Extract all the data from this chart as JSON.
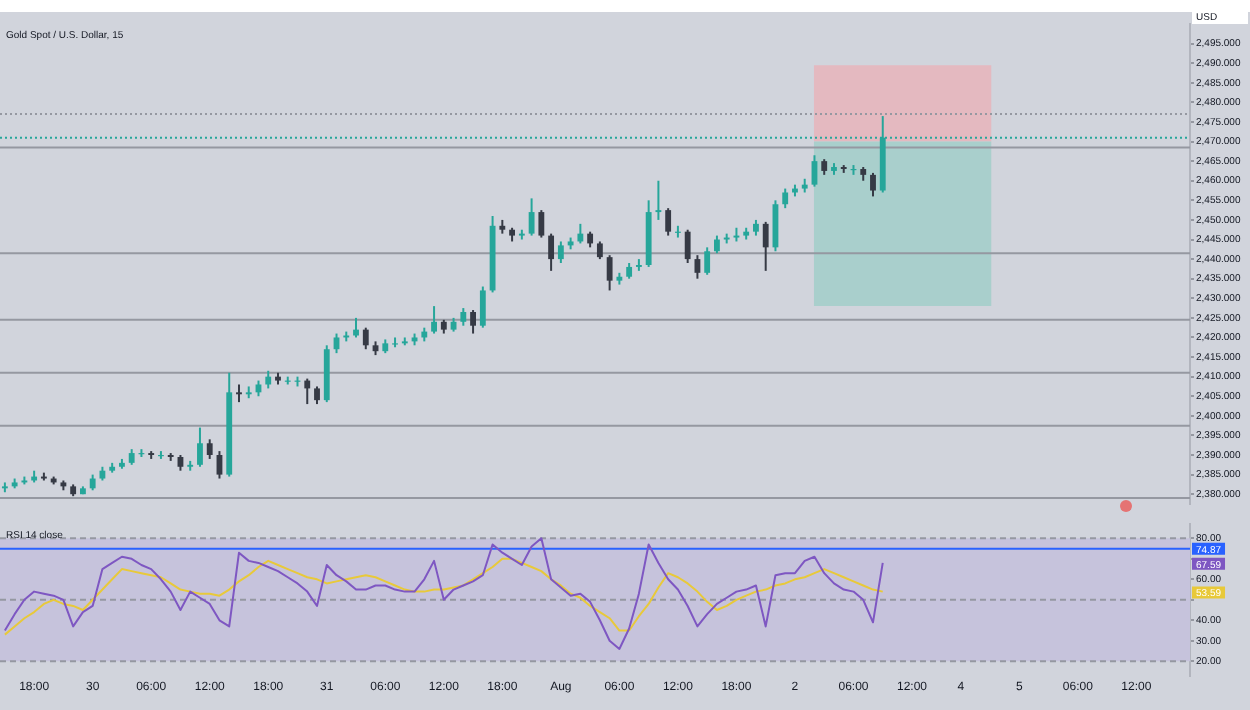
{
  "chart_data": [
    {
      "type": "candlestick",
      "title": "Gold Spot / U.S. Dollar, 15",
      "annotations": [
        "USD"
      ],
      "categories": [
        null,
        null,
        null,
        null,
        null,
        null,
        null,
        null,
        null,
        null,
        null,
        null,
        null,
        null,
        null,
        null,
        null,
        null,
        null,
        null,
        null,
        null,
        null,
        null,
        null,
        null,
        null,
        null,
        null,
        null,
        null,
        null,
        null,
        null,
        null,
        null,
        null,
        null,
        null,
        null,
        null,
        null,
        null,
        null,
        null,
        null,
        null,
        null,
        null,
        null,
        null,
        null,
        null,
        null,
        null,
        null,
        null,
        null,
        null,
        null,
        null,
        null,
        null,
        null,
        null,
        null,
        null,
        null,
        null,
        null,
        null,
        null,
        null,
        null,
        null,
        null,
        null,
        null,
        null,
        null,
        null,
        null,
        null,
        null,
        null,
        null,
        null,
        null,
        null,
        null,
        null,
        null,
        null,
        null,
        null,
        null,
        null,
        null,
        null,
        null,
        null,
        null,
        null,
        null,
        null,
        null,
        null,
        null,
        null,
        null,
        null,
        null,
        null,
        null,
        null,
        null,
        null,
        null,
        null,
        null,
        null,
        null
      ],
      "ohlc": [
        [
          2381.5,
          2383,
          2380.5,
          2382
        ],
        [
          2382,
          2384,
          2381.5,
          2383
        ],
        [
          2383,
          2384.5,
          2382.5,
          2383.5
        ],
        [
          2383.5,
          2386,
          2383,
          2384.5
        ],
        [
          2384.5,
          2385.5,
          2383.5,
          2384
        ],
        [
          2384,
          2384.5,
          2382.5,
          2383
        ],
        [
          2383,
          2383.5,
          2381,
          2382
        ],
        [
          2382,
          2382.5,
          2379.5,
          2380
        ],
        [
          2380,
          2382,
          2380,
          2381.5
        ],
        [
          2381.5,
          2385,
          2381,
          2384
        ],
        [
          2384,
          2387,
          2383.5,
          2386
        ],
        [
          2386,
          2388,
          2385.5,
          2387
        ],
        [
          2387,
          2389,
          2386.5,
          2388
        ],
        [
          2388,
          2391.5,
          2387.5,
          2390.5
        ],
        [
          2390.5,
          2391.5,
          2389.5,
          2390.5
        ],
        [
          2390.5,
          2391,
          2389,
          2390
        ],
        [
          2390,
          2391,
          2389,
          2390
        ],
        [
          2390,
          2390.5,
          2388.5,
          2389.5
        ],
        [
          2389.5,
          2390,
          2386,
          2387
        ],
        [
          2387,
          2388.5,
          2386,
          2387.5
        ],
        [
          2387.5,
          2397,
          2387,
          2393
        ],
        [
          2393,
          2394,
          2389,
          2390
        ],
        [
          2390,
          2391,
          2384,
          2385
        ],
        [
          2385,
          2411,
          2384.5,
          2406
        ],
        [
          2406,
          2408,
          2403.5,
          2405.5
        ],
        [
          2405.5,
          2407.5,
          2404.5,
          2406
        ],
        [
          2406,
          2409,
          2405,
          2408
        ],
        [
          2408,
          2411.5,
          2407,
          2410
        ],
        [
          2410,
          2411,
          2408,
          2409
        ],
        [
          2409,
          2410,
          2408,
          2409
        ],
        [
          2409,
          2410,
          2407.5,
          2409
        ],
        [
          2409,
          2409.5,
          2403,
          2407
        ],
        [
          2407,
          2407.5,
          2403,
          2404
        ],
        [
          2404,
          2418,
          2403.5,
          2417
        ],
        [
          2417,
          2421,
          2416,
          2420
        ],
        [
          2420,
          2421.5,
          2419,
          2420.5
        ],
        [
          2420.5,
          2425,
          2420,
          2422
        ],
        [
          2422,
          2422.5,
          2417,
          2418
        ],
        [
          2418,
          2419,
          2415.5,
          2416.5
        ],
        [
          2416.5,
          2419.5,
          2416,
          2418.5
        ],
        [
          2418.5,
          2420,
          2417.5,
          2418.5
        ],
        [
          2418.5,
          2420,
          2418,
          2419
        ],
        [
          2419,
          2421,
          2418,
          2420
        ],
        [
          2420,
          2422.5,
          2419,
          2421.5
        ],
        [
          2421.5,
          2428,
          2421,
          2424
        ],
        [
          2424,
          2424.5,
          2421,
          2422
        ],
        [
          2422,
          2425,
          2421.5,
          2424
        ],
        [
          2424,
          2427.5,
          2423,
          2426.5
        ],
        [
          2426.5,
          2427,
          2421,
          2423
        ],
        [
          2423,
          2433,
          2422.5,
          2432
        ],
        [
          2432,
          2451,
          2431.5,
          2448.5
        ],
        [
          2448.5,
          2450,
          2446.5,
          2447.5
        ],
        [
          2447.5,
          2448,
          2444.5,
          2446
        ],
        [
          2446,
          2447.5,
          2445,
          2446.5
        ],
        [
          2446.5,
          2455.5,
          2446,
          2452
        ],
        [
          2452,
          2452.5,
          2445.5,
          2446
        ],
        [
          2446,
          2446.5,
          2437,
          2440
        ],
        [
          2440,
          2444.5,
          2439,
          2443.5
        ],
        [
          2443.5,
          2445.5,
          2442.5,
          2444.5
        ],
        [
          2444.5,
          2449,
          2444,
          2446.5
        ],
        [
          2446.5,
          2447,
          2443,
          2444
        ],
        [
          2444,
          2444.5,
          2440,
          2440.5
        ],
        [
          2440.5,
          2441,
          2432,
          2434.5
        ],
        [
          2434.5,
          2436.5,
          2433.5,
          2435.5
        ],
        [
          2435.5,
          2439,
          2435,
          2438
        ],
        [
          2438,
          2440,
          2437,
          2438.5
        ],
        [
          2438.5,
          2455,
          2438,
          2452
        ],
        [
          2452,
          2460,
          2450,
          2452.5
        ],
        [
          2452.5,
          2453,
          2446,
          2447
        ],
        [
          2447,
          2448.5,
          2445.5,
          2447
        ],
        [
          2447,
          2447.5,
          2439,
          2440
        ],
        [
          2440,
          2441,
          2435,
          2436.5
        ],
        [
          2436.5,
          2443,
          2436,
          2442
        ],
        [
          2442,
          2446,
          2441.5,
          2445
        ],
        [
          2445,
          2446.5,
          2444,
          2445.5
        ],
        [
          2445.5,
          2448,
          2444.5,
          2446
        ],
        [
          2446,
          2448,
          2445,
          2447
        ],
        [
          2447,
          2450,
          2446,
          2449
        ],
        [
          2449,
          2449.5,
          2437,
          2443
        ],
        [
          2443,
          2455,
          2442,
          2454
        ],
        [
          2454,
          2458,
          2453,
          2457
        ],
        [
          2457,
          2459,
          2456,
          2458
        ],
        [
          2458,
          2460.5,
          2457,
          2459
        ],
        [
          2459,
          2466.5,
          2458.5,
          2465
        ],
        [
          2465,
          2465.5,
          2461.5,
          2462.5
        ],
        [
          2462.5,
          2464.5,
          2461.5,
          2463.5
        ],
        [
          2463.5,
          2464,
          2462,
          2463
        ],
        [
          2463,
          2464,
          2461.5,
          2463
        ],
        [
          2463,
          2463.5,
          2460,
          2461.5
        ],
        [
          2461.5,
          2462,
          2456,
          2457.5
        ],
        [
          2457.5,
          2476.5,
          2457,
          2471
        ],
        null,
        null,
        null,
        null,
        null,
        null,
        null,
        null,
        null,
        null,
        null,
        null,
        null,
        null,
        null,
        null,
        null,
        null,
        null,
        null,
        null,
        null,
        null,
        null,
        null,
        null,
        null,
        null,
        null,
        null,
        null
      ],
      "colors": [
        "#26a69a",
        "#26a69a",
        "#26a69a",
        "#26a69a",
        "#363a45",
        "#363a45",
        "#363a45",
        "#363a45",
        "#26a69a",
        "#26a69a",
        "#26a69a",
        "#26a69a",
        "#26a69a",
        "#26a69a",
        "#26a69a",
        "#363a45",
        "#26a69a",
        "#363a45",
        "#363a45",
        "#26a69a",
        "#26a69a",
        "#363a45",
        "#363a45",
        "#26a69a",
        "#363a45",
        "#26a69a",
        "#26a69a",
        "#26a69a",
        "#363a45",
        "#26a69a",
        "#26a69a",
        "#363a45",
        "#363a45",
        "#26a69a",
        "#26a69a",
        "#26a69a",
        "#26a69a",
        "#363a45",
        "#363a45",
        "#26a69a",
        "#26a69a",
        "#26a69a",
        "#26a69a",
        "#26a69a",
        "#26a69a",
        "#363a45",
        "#26a69a",
        "#26a69a",
        "#363a45",
        "#26a69a",
        "#26a69a",
        "#363a45",
        "#363a45",
        "#26a69a",
        "#26a69a",
        "#363a45",
        "#363a45",
        "#26a69a",
        "#26a69a",
        "#26a69a",
        "#363a45",
        "#363a45",
        "#363a45",
        "#26a69a",
        "#26a69a",
        "#26a69a",
        "#26a69a",
        "#26a69a",
        "#363a45",
        "#26a69a",
        "#363a45",
        "#363a45",
        "#26a69a",
        "#26a69a",
        "#26a69a",
        "#26a69a",
        "#26a69a",
        "#26a69a",
        "#363a45",
        "#26a69a",
        "#26a69a",
        "#26a69a",
        "#26a69a",
        "#26a69a",
        "#363a45",
        "#26a69a",
        "#363a45",
        "#26a69a",
        "#363a45",
        "#363a45",
        "#26a69a",
        null,
        null,
        null,
        null,
        null,
        null,
        null,
        null,
        null,
        null,
        null,
        null,
        null,
        null,
        null,
        null,
        null,
        null,
        null,
        null,
        null,
        null,
        null,
        null,
        null,
        null,
        null,
        null,
        null,
        null,
        null
      ],
      "ylim": [
        2377.5,
        2500
      ],
      "yticks": [
        {
          "value": 2380,
          "label": "2,380.000"
        },
        {
          "value": 2385,
          "label": "2,385.000"
        },
        {
          "value": 2390,
          "label": "2,390.000"
        },
        {
          "value": 2395,
          "label": "2,395.000"
        },
        {
          "value": 2400,
          "label": "2,400.000"
        },
        {
          "value": 2405,
          "label": "2,405.000"
        },
        {
          "value": 2410,
          "label": "2,410.000"
        },
        {
          "value": 2415,
          "label": "2,415.000"
        },
        {
          "value": 2420,
          "label": "2,420.000"
        },
        {
          "value": 2425,
          "label": "2,425.000"
        },
        {
          "value": 2430,
          "label": "2,430.000"
        },
        {
          "value": 2435,
          "label": "2,435.000"
        },
        {
          "value": 2440,
          "label": "2,440.000"
        },
        {
          "value": 2445,
          "label": "2,445.000"
        },
        {
          "value": 2450,
          "label": "2,450.000"
        },
        {
          "value": 2455,
          "label": "2,455.000"
        },
        {
          "value": 2460,
          "label": "2,460.000"
        },
        {
          "value": 2465,
          "label": "2,465.000"
        },
        {
          "value": 2470,
          "label": "2,470.000"
        },
        {
          "value": 2475,
          "label": "2,475.000"
        },
        {
          "value": 2480,
          "label": "2,480.000"
        },
        {
          "value": 2485,
          "label": "2,485.000"
        },
        {
          "value": 2490,
          "label": "2,490.000"
        },
        {
          "value": 2495,
          "label": "2,495.000"
        }
      ],
      "tick_labels": "y",
      "bands": [
        {
          "axis": "y",
          "from": 2470,
          "to": 2489.5,
          "color": "#e4b9c0"
        },
        {
          "axis": "y",
          "from": 2428,
          "to": 2470,
          "color": "#a9cfcc"
        }
      ],
      "ref_lines": [
        {
          "axis": "y",
          "value": 2477,
          "color": "#9598a1",
          "line_style": "dotted"
        },
        {
          "axis": "y",
          "value": 2471,
          "color": "#26a69a",
          "line_style": "dotted"
        },
        {
          "axis": "y",
          "value": 2468.5,
          "color": "#9598a1"
        },
        {
          "axis": "y",
          "value": 2441.5,
          "color": "#9598a1"
        },
        {
          "axis": "y",
          "value": 2424.5,
          "color": "#9598a1"
        },
        {
          "axis": "y",
          "value": 2411,
          "color": "#9598a1"
        },
        {
          "axis": "y",
          "value": 2397.5,
          "color": "#9598a1"
        },
        {
          "axis": "y",
          "value": 2379,
          "color": "#9598a1"
        }
      ]
    },
    {
      "type": "line",
      "title": "RSI 14 close",
      "marker": "none",
      "categories": [
        null,
        null,
        null,
        "18:00",
        null,
        null,
        null,
        null,
        null,
        "30",
        null,
        null,
        null,
        null,
        null,
        "06:00",
        null,
        null,
        null,
        null,
        null,
        "12:00",
        null,
        null,
        null,
        null,
        null,
        "18:00",
        null,
        null,
        null,
        null,
        null,
        "31",
        null,
        null,
        null,
        null,
        null,
        "06:00",
        null,
        null,
        null,
        null,
        null,
        "12:00",
        null,
        null,
        null,
        null,
        null,
        "18:00",
        null,
        null,
        null,
        null,
        null,
        "Aug",
        null,
        null,
        null,
        null,
        null,
        "06:00",
        null,
        null,
        null,
        null,
        null,
        "12:00",
        null,
        null,
        null,
        null,
        null,
        "18:00",
        null,
        null,
        null,
        null,
        null,
        "2",
        null,
        null,
        null,
        null,
        null,
        "06:00",
        null,
        null,
        null,
        null,
        null,
        "12:00",
        null,
        null,
        null,
        null,
        "4",
        null,
        null,
        null,
        null,
        null,
        "5",
        null,
        null,
        null,
        null,
        null,
        "06:00",
        null,
        null,
        null,
        null,
        null,
        "12:00",
        null,
        null,
        null,
        null,
        null
      ],
      "series": [
        {
          "color": "#7e57c2",
          "values": [
            35,
            43,
            50,
            54,
            53,
            52,
            50,
            37,
            44,
            47,
            65,
            68,
            71,
            70,
            67,
            65,
            60,
            54,
            45,
            54,
            51,
            48,
            40,
            37,
            73,
            69,
            68,
            66,
            64,
            61,
            58,
            54,
            47,
            67,
            62,
            59,
            55,
            55,
            57,
            57,
            55,
            54,
            54,
            60,
            69,
            50,
            55,
            57,
            59,
            62,
            77,
            73,
            70,
            67,
            76,
            80,
            60,
            56,
            52,
            53,
            49,
            40,
            30,
            26,
            36,
            53,
            77,
            68,
            60,
            55,
            47,
            37,
            43,
            48,
            51,
            54,
            55,
            57,
            37,
            62,
            63,
            63,
            69,
            71,
            63,
            58,
            55,
            54,
            50,
            39,
            68,
            null,
            null,
            null,
            null,
            null,
            null,
            null,
            null,
            null,
            null,
            null,
            null,
            null,
            null,
            null,
            null,
            null,
            null,
            null,
            null,
            null,
            null,
            null,
            null,
            null,
            null,
            null,
            null,
            null,
            null,
            null
          ]
        },
        {
          "color": "#e8c93a",
          "values": [
            33,
            37,
            41,
            44,
            48,
            50,
            48,
            47,
            45,
            50,
            55,
            60,
            65,
            64,
            63,
            62,
            61,
            58,
            55,
            54,
            53,
            53,
            52,
            55,
            59,
            62,
            66,
            69,
            67,
            65,
            63,
            61,
            60,
            58,
            59,
            60,
            61,
            62,
            61,
            59,
            57,
            55,
            54,
            54,
            55,
            55,
            56,
            57,
            60,
            63,
            66,
            70,
            70,
            68,
            66,
            64,
            60,
            57,
            53,
            51,
            47,
            44,
            41,
            35,
            35,
            42,
            48,
            56,
            63,
            61,
            58,
            54,
            49,
            45,
            47,
            50,
            52,
            54,
            55,
            57,
            58,
            60,
            61,
            63,
            65,
            63,
            61,
            59,
            57,
            55,
            54,
            null,
            null,
            null,
            null,
            null,
            null,
            null,
            null,
            null,
            null,
            null,
            null,
            null,
            null,
            null,
            null,
            null,
            null,
            null,
            null,
            null,
            null,
            null,
            null,
            null,
            null,
            null,
            null,
            null,
            null,
            null
          ]
        }
      ],
      "ylim": [
        13,
        87
      ],
      "yticks": [
        {
          "value": 20,
          "label": "20.00"
        },
        {
          "value": 30,
          "label": "30.00"
        },
        {
          "value": 40,
          "label": "40.00"
        },
        {
          "value": 50,
          "label": null
        },
        {
          "value": 60,
          "label": "60.00"
        },
        {
          "value": 70,
          "label": null
        },
        {
          "value": 80,
          "label": "80.00"
        }
      ],
      "bands": [
        {
          "axis": "y",
          "from": 20,
          "to": 80,
          "color": "#c6c3dc"
        }
      ],
      "ref_lines": [
        {
          "axis": "y",
          "value": 80,
          "color": "#9598a1",
          "line_style": "dashed"
        },
        {
          "axis": "y",
          "value": 50,
          "color": "#9598a1",
          "line_style": "dashed"
        },
        {
          "axis": "y",
          "value": 20,
          "color": "#9598a1",
          "line_style": "dashed"
        },
        {
          "axis": "y",
          "value": 74.87,
          "label": "74.87",
          "color": "#2962ff"
        }
      ],
      "annotations": [
        {
          "text": "67.59",
          "y": 67.59
        },
        {
          "text": "53.59",
          "y": 53.59
        }
      ]
    }
  ]
}
